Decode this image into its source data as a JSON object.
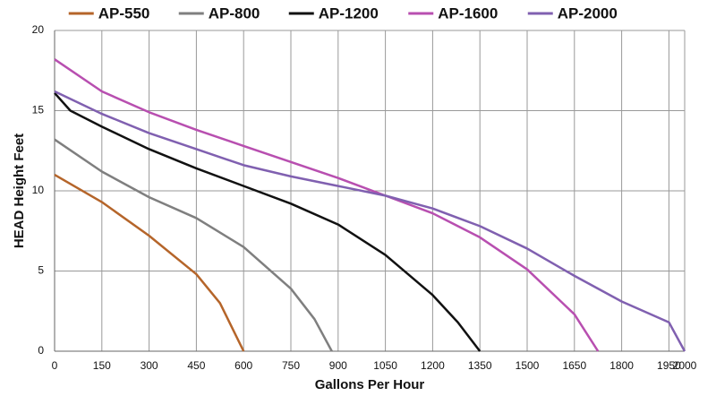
{
  "chart_data": {
    "type": "line",
    "x_label": "Gallons Per Hour",
    "y_label": "HEAD Height Feet",
    "xlim": [
      0,
      2000
    ],
    "ylim": [
      0,
      20
    ],
    "xticks": [
      0,
      150,
      300,
      450,
      600,
      750,
      900,
      1050,
      1200,
      1350,
      1500,
      1650,
      1800,
      1950,
      2000
    ],
    "yticks": [
      0,
      5,
      10,
      15,
      20
    ],
    "grid": true,
    "legend": "top",
    "series": [
      {
        "name": "AP-550",
        "color": "#b5652a",
        "x": [
          0,
          150,
          300,
          450,
          525,
          600
        ],
        "values": [
          11,
          9.3,
          7.2,
          4.8,
          3,
          0
        ]
      },
      {
        "name": "AP-800",
        "color": "#7f7f7f",
        "x": [
          0,
          150,
          300,
          450,
          600,
          750,
          825,
          880
        ],
        "values": [
          13.2,
          11.2,
          9.6,
          8.3,
          6.5,
          3.9,
          2,
          0
        ]
      },
      {
        "name": "AP-1200",
        "color": "#111111",
        "x": [
          0,
          50,
          150,
          300,
          450,
          600,
          750,
          900,
          1050,
          1200,
          1280,
          1350
        ],
        "values": [
          16.1,
          15,
          14,
          12.6,
          11.4,
          10.3,
          9.2,
          7.9,
          6,
          3.5,
          1.8,
          0
        ]
      },
      {
        "name": "AP-1600",
        "color": "#b84fb0",
        "x": [
          0,
          150,
          300,
          450,
          600,
          750,
          900,
          1050,
          1200,
          1350,
          1500,
          1650,
          1725
        ],
        "values": [
          18.2,
          16.2,
          14.9,
          13.8,
          12.8,
          11.8,
          10.8,
          9.7,
          8.6,
          7.1,
          5.1,
          2.3,
          0
        ]
      },
      {
        "name": "AP-2000",
        "color": "#8060b0",
        "x": [
          0,
          150,
          300,
          450,
          600,
          750,
          900,
          1050,
          1200,
          1350,
          1500,
          1650,
          1800,
          1950,
          2000
        ],
        "values": [
          16.2,
          14.8,
          13.6,
          12.6,
          11.6,
          10.9,
          10.3,
          9.7,
          8.9,
          7.8,
          6.4,
          4.7,
          3.1,
          1.8,
          0
        ]
      }
    ]
  }
}
